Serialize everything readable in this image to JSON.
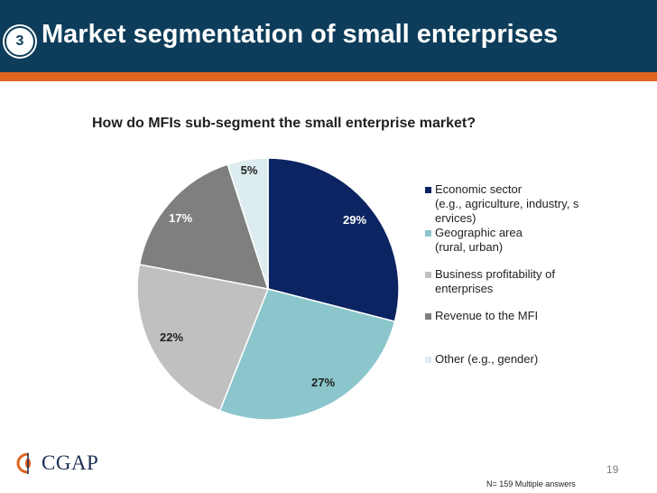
{
  "slide": {
    "number": "3",
    "title": "Market segmentation of small enterprises",
    "page_number": "19",
    "footnote": "N= 159 Multiple answers",
    "logo_text": "CGAP"
  },
  "colors": {
    "header": "#0d3d5a",
    "accent_band": "#e0641f"
  },
  "chart_data": {
    "type": "pie",
    "title": "How do MFIs sub-segment the small enterprise market?",
    "categories": [
      "Economic sector (e.g., agriculture, industry, services)",
      "Geographic area (rural, urban)",
      "Business profitability of enterprises",
      "Revenue to the MFI",
      "Other (e.g., gender)"
    ],
    "legend_labels": [
      "Economic sector\n(e.g., agriculture, industry, s\nervices)",
      "Geographic area\n(rural, urban)",
      "Business profitability of\nenterprises",
      "Revenue to the MFI",
      "Other (e.g., gender)"
    ],
    "values": [
      29,
      27,
      22,
      17,
      5
    ],
    "labels": [
      "29%",
      "27%",
      "22%",
      "17%",
      "5%"
    ],
    "colors": [
      "#0c2461",
      "#8ac6cc",
      "#c0c0c0",
      "#7f7f7f",
      "#dcecef"
    ],
    "legend_position": "right"
  }
}
